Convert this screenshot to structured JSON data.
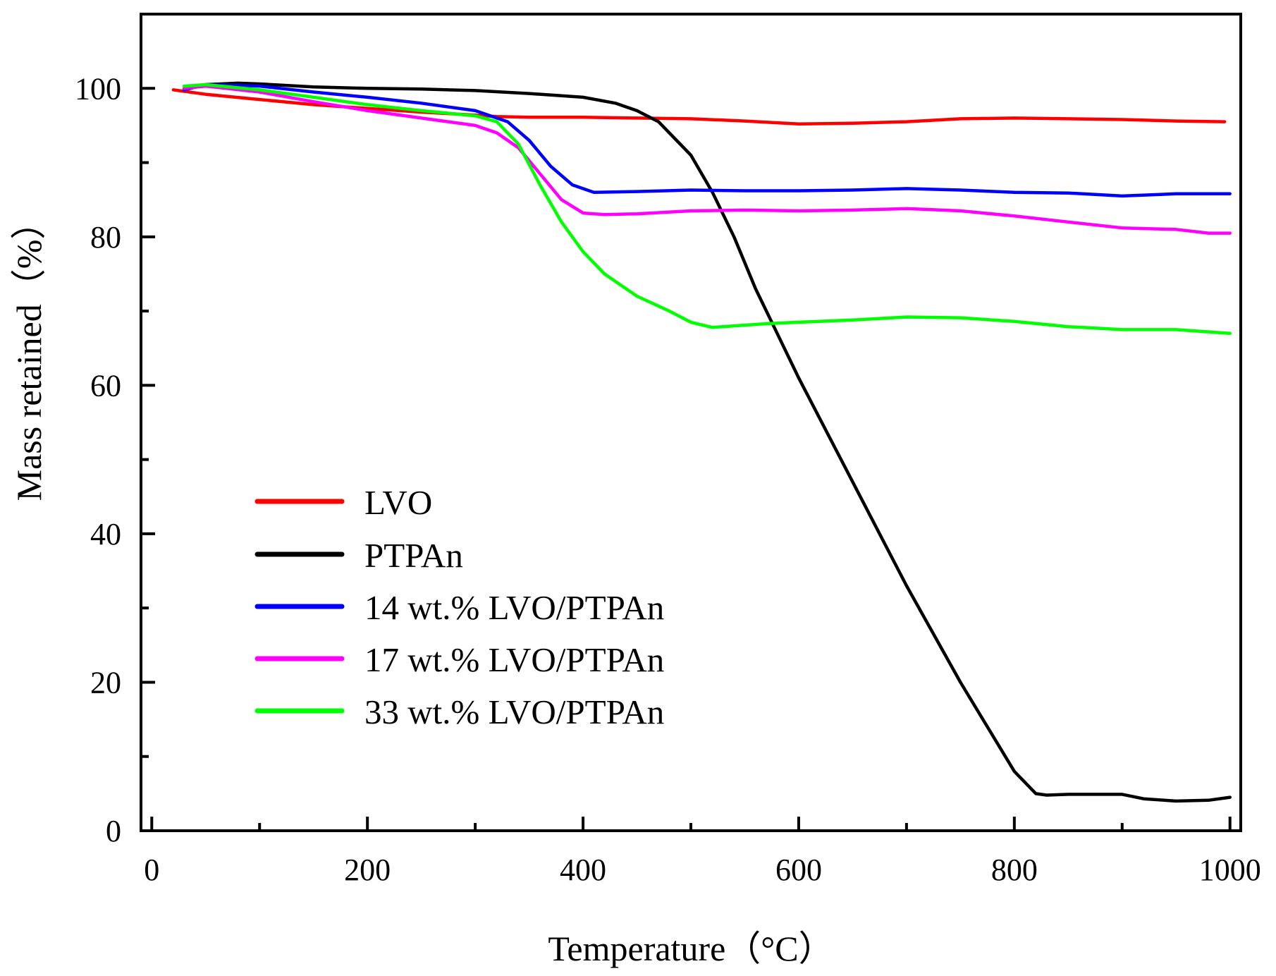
{
  "chart_data": {
    "type": "line",
    "title": "",
    "xlabel": "Temperature（°C）",
    "ylabel": "Mass retained（%）",
    "xlim": [
      -10,
      1010
    ],
    "ylim": [
      0,
      110
    ],
    "x_ticks": [
      0,
      200,
      400,
      600,
      800,
      1000
    ],
    "x_tick_labels": [
      "0",
      "200",
      "400",
      "600",
      "800",
      "1000"
    ],
    "y_ticks": [
      0,
      20,
      40,
      60,
      80,
      100
    ],
    "y_tick_labels": [
      "0",
      "20",
      "40",
      "60",
      "80",
      "100"
    ],
    "x_minor_ticks": [
      100,
      300,
      500,
      700,
      900
    ],
    "y_minor_ticks": [
      10,
      30,
      50,
      70,
      90
    ],
    "grid": false,
    "legend_position": "lower-left",
    "series": [
      {
        "name": "LVO",
        "color": "#ff0000",
        "x": [
          20,
          50,
          100,
          150,
          200,
          250,
          300,
          320,
          350,
          400,
          450,
          500,
          550,
          600,
          650,
          700,
          750,
          800,
          850,
          900,
          950,
          995
        ],
        "y": [
          99.8,
          99.2,
          98.5,
          97.8,
          97.3,
          96.8,
          96.4,
          96.2,
          96.1,
          96.1,
          96.0,
          95.9,
          95.6,
          95.2,
          95.3,
          95.5,
          95.9,
          96.0,
          95.9,
          95.8,
          95.6,
          95.5
        ]
      },
      {
        "name": "PTPAn",
        "color": "#000000",
        "x": [
          30,
          50,
          80,
          100,
          150,
          200,
          250,
          300,
          350,
          400,
          430,
          450,
          470,
          500,
          520,
          540,
          560,
          580,
          600,
          650,
          700,
          750,
          800,
          820,
          830,
          850,
          900,
          920,
          950,
          980,
          1000
        ],
        "y": [
          100,
          100.5,
          100.7,
          100.6,
          100.2,
          100,
          99.9,
          99.7,
          99.3,
          98.8,
          98,
          97,
          95.5,
          91,
          86,
          80,
          73,
          67,
          61,
          47,
          33,
          20,
          8,
          5,
          4.8,
          4.9,
          4.9,
          4.3,
          4.0,
          4.1,
          4.5
        ]
      },
      {
        "name": "14 wt.% LVO/PTPAn",
        "color": "#0000ff",
        "x": [
          30,
          50,
          100,
          150,
          200,
          250,
          300,
          330,
          350,
          370,
          390,
          410,
          450,
          500,
          550,
          600,
          650,
          700,
          750,
          800,
          850,
          900,
          950,
          1000
        ],
        "y": [
          99.8,
          100.5,
          100.3,
          99.5,
          98.8,
          98,
          97,
          95.5,
          93,
          89.5,
          87,
          86.0,
          86.1,
          86.3,
          86.2,
          86.2,
          86.3,
          86.5,
          86.3,
          86.0,
          85.9,
          85.5,
          85.8,
          85.8
        ]
      },
      {
        "name": "17 wt.% LVO/PTPAn",
        "color": "#ff00ff",
        "x": [
          30,
          50,
          100,
          150,
          200,
          250,
          300,
          320,
          340,
          360,
          380,
          400,
          420,
          450,
          500,
          550,
          600,
          650,
          700,
          750,
          800,
          850,
          900,
          950,
          980,
          1000
        ],
        "y": [
          100,
          100.3,
          99.5,
          98.2,
          97,
          96,
          95,
          94,
          92,
          88.5,
          85,
          83.2,
          83,
          83.1,
          83.5,
          83.6,
          83.5,
          83.6,
          83.8,
          83.5,
          82.8,
          82,
          81.2,
          81,
          80.5,
          80.5
        ]
      },
      {
        "name": "33 wt.% LVO/PTPAn",
        "color": "#00ff00",
        "x": [
          30,
          50,
          100,
          150,
          200,
          250,
          300,
          320,
          340,
          360,
          380,
          400,
          420,
          450,
          480,
          500,
          520,
          540,
          570,
          600,
          650,
          700,
          750,
          800,
          850,
          900,
          950,
          1000
        ],
        "y": [
          100.3,
          100.5,
          99.8,
          98.8,
          97.8,
          97,
          96.3,
          95.5,
          92.5,
          87,
          82,
          78,
          75,
          72,
          70,
          68.5,
          67.8,
          68,
          68.3,
          68.5,
          68.8,
          69.2,
          69.1,
          68.6,
          67.9,
          67.5,
          67.5,
          67
        ]
      }
    ]
  }
}
